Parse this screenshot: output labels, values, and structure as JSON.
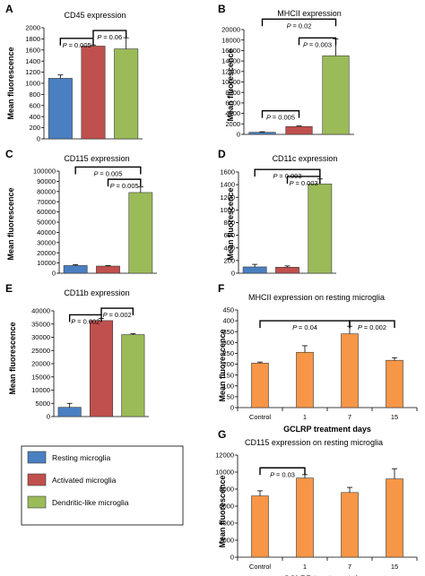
{
  "colors": {
    "resting": "#4a7fc1",
    "activated": "#c0504d",
    "dendritic": "#9bbb59",
    "orange": "#f79646"
  },
  "legend": [
    {
      "label": "Resting microglia",
      "color": "#4a7fc1"
    },
    {
      "label": "Activated microglia",
      "color": "#c0504d"
    },
    {
      "label": "Dendritic-like microglia",
      "color": "#9bbb59"
    }
  ],
  "chart_data": [
    {
      "letter": "A",
      "type": "bar",
      "title": "CD45 expression",
      "ylabel": "Mean fluorescence",
      "ylim": [
        0,
        2000
      ],
      "yticks": [
        0,
        200,
        400,
        600,
        800,
        1000,
        1200,
        1400,
        1600,
        1800,
        2000
      ],
      "categories": [
        "",
        "",
        ""
      ],
      "values": [
        1090,
        1670,
        1620
      ],
      "errors": [
        60,
        20,
        200
      ],
      "bar_colors": [
        "#4a7fc1",
        "#c0504d",
        "#9bbb59"
      ],
      "annotations": [
        {
          "text": "= 0.005",
          "from": 0,
          "to": 1,
          "y": 1810
        },
        {
          "text": "= 0.06",
          "from": 1,
          "to": 2,
          "y": 1950
        }
      ]
    },
    {
      "letter": "B",
      "type": "bar",
      "title": "MHCII expression",
      "ylabel": "Mean fluorescence",
      "ylim": [
        0,
        20000
      ],
      "yticks": [
        0,
        2000,
        4000,
        6000,
        8000,
        10000,
        12000,
        14000,
        16000,
        18000,
        20000
      ],
      "categories": [
        "",
        "",
        ""
      ],
      "values": [
        400,
        1500,
        15000
      ],
      "errors": [
        100,
        100,
        3200
      ],
      "bar_colors": [
        "#4a7fc1",
        "#c0504d",
        "#9bbb59"
      ],
      "annotations": [
        {
          "text": "= 0.005",
          "from": 0,
          "to": 1,
          "y": 4500
        },
        {
          "text": "= 0.003",
          "from": 1,
          "to": 2,
          "y": 18400
        },
        {
          "text": "= 0.02",
          "from": 0,
          "to": 2,
          "y": 22000
        }
      ]
    },
    {
      "letter": "C",
      "type": "bar",
      "title": "CD115 expression",
      "ylabel": "Mean fluorescence",
      "ylim": [
        0,
        100000
      ],
      "yticks": [
        0,
        10000,
        20000,
        30000,
        40000,
        50000,
        60000,
        70000,
        80000,
        90000,
        100000
      ],
      "categories": [
        "",
        "",
        ""
      ],
      "values": [
        7500,
        7000,
        79000
      ],
      "errors": [
        800,
        500,
        5500
      ],
      "bar_colors": [
        "#4a7fc1",
        "#c0504d",
        "#9bbb59"
      ],
      "annotations": [
        {
          "text": "= 0.005",
          "from": 1,
          "to": 2,
          "y": 92000
        },
        {
          "text": "= 0.005",
          "from": 0,
          "to": 2,
          "y": 104000
        }
      ]
    },
    {
      "letter": "D",
      "type": "bar",
      "title": "CD11c expression",
      "ylabel": "Mean fluorescence",
      "ylim": [
        0,
        1600
      ],
      "yticks": [
        0,
        200,
        400,
        600,
        800,
        1000,
        1200,
        1400,
        1600
      ],
      "categories": [
        "",
        "",
        ""
      ],
      "values": [
        100,
        95,
        1410
      ],
      "errors": [
        40,
        20,
        80
      ],
      "bar_colors": [
        "#4a7fc1",
        "#c0504d",
        "#9bbb59"
      ],
      "annotations": [
        {
          "text": "= 0.003",
          "from": 1,
          "to": 2,
          "y": 1530
        },
        {
          "text": "= 0.003",
          "from": 0,
          "to": 2,
          "y": 1640
        }
      ]
    },
    {
      "letter": "E",
      "type": "bar",
      "title": "CD11b expression",
      "ylabel": "Mean fluorescence",
      "ylim": [
        0,
        40000
      ],
      "yticks": [
        0,
        5000,
        10000,
        15000,
        20000,
        25000,
        30000,
        35000,
        40000
      ],
      "categories": [
        "",
        "",
        ""
      ],
      "values": [
        3500,
        36300,
        31000
      ],
      "errors": [
        1500,
        800,
        400
      ],
      "bar_colors": [
        "#4a7fc1",
        "#c0504d",
        "#9bbb59"
      ],
      "annotations": [
        {
          "text": "= 0.002",
          "from": 0,
          "to": 1,
          "y": 38500
        },
        {
          "text": "= 0.002",
          "from": 1,
          "to": 2,
          "y": 41000
        }
      ]
    },
    {
      "letter": "F",
      "type": "bar",
      "title": "MHCII expression on resting microglia",
      "ylabel": "Mean fluorescence",
      "xlabel": "GCLRP treatment days",
      "ylim": [
        0,
        450
      ],
      "yticks": [
        0,
        50,
        100,
        150,
        200,
        250,
        300,
        350,
        400,
        450
      ],
      "categories": [
        "Control",
        "1",
        "7",
        "15"
      ],
      "values": [
        205,
        255,
        340,
        218
      ],
      "errors": [
        5,
        30,
        35,
        12
      ],
      "bar_colors": [
        "#f79646",
        "#f79646",
        "#f79646",
        "#f79646"
      ],
      "annotations": [
        {
          "text": "= 0.04",
          "from": 0,
          "to": 2,
          "y": 400
        },
        {
          "text": "= 0.002",
          "from": 2,
          "to": 3,
          "y": 400
        }
      ]
    },
    {
      "letter": "G",
      "type": "bar",
      "title": "CD115 expression on resting microglia",
      "ylabel": "Mean fluorescence",
      "xlabel": "GCLRP treatment days",
      "ylim": [
        0,
        12000
      ],
      "yticks": [
        0,
        2000,
        4000,
        6000,
        8000,
        10000,
        12000
      ],
      "categories": [
        "Control",
        "1",
        "7",
        "15"
      ],
      "values": [
        7200,
        9300,
        7600,
        9200
      ],
      "errors": [
        600,
        400,
        600,
        1200
      ],
      "bar_colors": [
        "#f79646",
        "#f79646",
        "#f79646",
        "#f79646"
      ],
      "annotations": [
        {
          "text": "= 0.03",
          "from": 0,
          "to": 1,
          "y": 10500
        }
      ]
    }
  ]
}
